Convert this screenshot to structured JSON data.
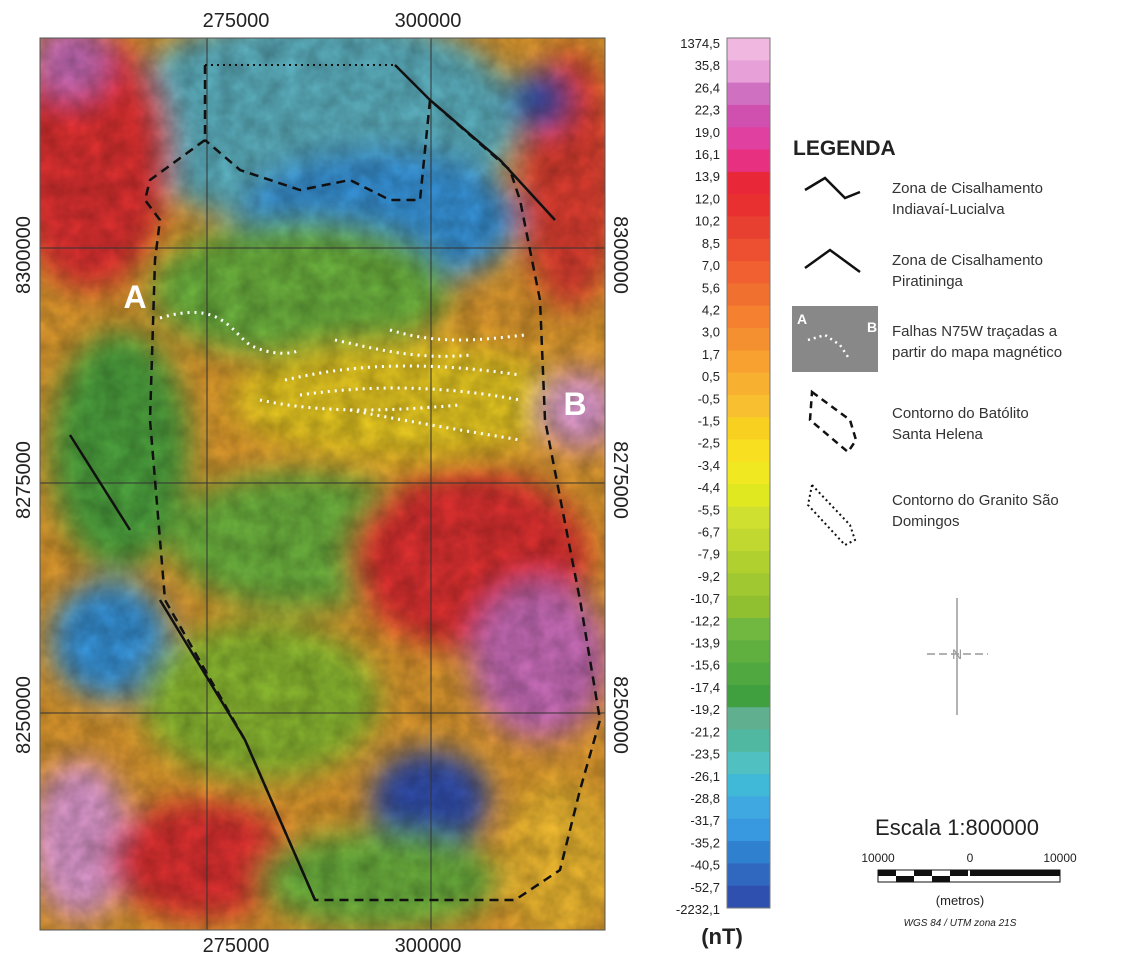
{
  "map": {
    "axis_labels": {
      "top": [
        "275000",
        "300000"
      ],
      "bottom": [
        "275000",
        "300000"
      ],
      "left": [
        "8300000",
        "8275000",
        "8250000"
      ],
      "right": [
        "8300000",
        "8275000",
        "8250000"
      ]
    },
    "profile_labels": [
      "A",
      "B"
    ],
    "north": "N"
  },
  "colorbar": {
    "labels": [
      "1374,5",
      "35,8",
      "26,4",
      "22,3",
      "19,0",
      "16,1",
      "13,9",
      "12,0",
      "10,2",
      "8,5",
      "7,0",
      "5,6",
      "4,2",
      "3,0",
      "1,7",
      "0,5",
      "-0,5",
      "-1,5",
      "-2,5",
      "-3,4",
      "-4,4",
      "-5,5",
      "-6,7",
      "-7,9",
      "-9,2",
      "-10,7",
      "-12,2",
      "-13,9",
      "-15,6",
      "-17,4",
      "-19,2",
      "-21,2",
      "-23,5",
      "-26,1",
      "-28,8",
      "-31,7",
      "-35,2",
      "-40,5",
      "-52,7",
      "-2232,1"
    ],
    "colors": [
      "#f0b8e0",
      "#e8a0d8",
      "#d070c0",
      "#d050b0",
      "#e040a0",
      "#e83080",
      "#e82838",
      "#e83030",
      "#e84030",
      "#ec5030",
      "#f06030",
      "#f07030",
      "#f48030",
      "#f49030",
      "#f8a030",
      "#f8b030",
      "#f8c030",
      "#f8d020",
      "#f8e020",
      "#f0e820",
      "#e0e820",
      "#d0e030",
      "#c0d830",
      "#b0d030",
      "#a0c830",
      "#90c030",
      "#70b840",
      "#60b040",
      "#50a840",
      "#40a040",
      "#60b090",
      "#50b8a0",
      "#50c0c0",
      "#40b8d8",
      "#40a8e0",
      "#3898e0",
      "#3080d0",
      "#3068c0",
      "#3050b0"
    ],
    "unit": "(nT)"
  },
  "legend": {
    "title": "LEGENDA",
    "items": [
      {
        "lines": [
          "Zona de Cisalhamento",
          "Indiavaí-Lucialva"
        ]
      },
      {
        "lines": [
          "Zona de Cisalhamento",
          "Piratininga"
        ]
      },
      {
        "lines": [
          "Falhas N75W traçadas a",
          "partir do mapa magnético"
        ],
        "icon_labels": [
          "A",
          "B"
        ]
      },
      {
        "lines": [
          "Contorno do Batólito",
          "Santa Helena"
        ]
      },
      {
        "lines": [
          "Contorno do Granito São",
          "Domingos"
        ]
      }
    ]
  },
  "scale": {
    "title": "Escala 1:800000",
    "ticks": [
      "10000",
      "0",
      "10000"
    ],
    "unit": "(metros)",
    "projection": "WGS 84 / UTM zona 21S"
  }
}
